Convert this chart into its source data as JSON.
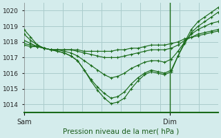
{
  "xlabel": "Pression niveau de la mer( hPa )",
  "bg_color": "#d4ecec",
  "grid_color": "#aacccc",
  "line_color": "#1a6b1a",
  "marker": "+",
  "xlim": [
    0,
    36
  ],
  "ylim": [
    1013.5,
    1020.5
  ],
  "yticks": [
    1014,
    1015,
    1016,
    1017,
    1018,
    1019,
    1020
  ],
  "sam_x": 0,
  "dim_x": 27,
  "series": [
    [
      1018.8,
      1018.3,
      1017.8,
      1017.6,
      1017.5,
      1017.4,
      1017.3,
      1017.1,
      1016.8,
      1016.2,
      1015.5,
      1014.9,
      1014.4,
      1014.05,
      1014.15,
      1014.4,
      1015.0,
      1015.5,
      1015.9,
      1016.1,
      1016.0,
      1015.9,
      1016.1,
      1017.1,
      1018.0,
      1018.8,
      1019.3,
      1019.6,
      1019.9,
      1020.2
    ],
    [
      1018.5,
      1018.1,
      1017.8,
      1017.6,
      1017.5,
      1017.4,
      1017.3,
      1017.1,
      1016.8,
      1016.2,
      1015.6,
      1015.1,
      1014.7,
      1014.4,
      1014.5,
      1014.8,
      1015.3,
      1015.7,
      1016.0,
      1016.2,
      1016.1,
      1016.0,
      1016.2,
      1017.1,
      1017.9,
      1018.6,
      1019.0,
      1019.3,
      1019.6,
      1019.9
    ],
    [
      1018.1,
      1017.9,
      1017.7,
      1017.6,
      1017.5,
      1017.5,
      1017.4,
      1017.3,
      1017.1,
      1016.8,
      1016.5,
      1016.2,
      1015.9,
      1015.7,
      1015.8,
      1016.0,
      1016.3,
      1016.5,
      1016.7,
      1016.8,
      1016.8,
      1016.7,
      1016.9,
      1017.4,
      1018.0,
      1018.5,
      1018.8,
      1019.0,
      1019.2,
      1019.3
    ],
    [
      1017.9,
      1017.8,
      1017.7,
      1017.6,
      1017.5,
      1017.5,
      1017.5,
      1017.5,
      1017.4,
      1017.3,
      1017.2,
      1017.1,
      1017.0,
      1017.0,
      1017.0,
      1017.1,
      1017.2,
      1017.3,
      1017.4,
      1017.5,
      1017.5,
      1017.5,
      1017.6,
      1017.8,
      1018.1,
      1018.3,
      1018.5,
      1018.6,
      1018.7,
      1018.8
    ],
    [
      1017.8,
      1017.7,
      1017.7,
      1017.6,
      1017.5,
      1017.5,
      1017.5,
      1017.5,
      1017.5,
      1017.4,
      1017.4,
      1017.4,
      1017.4,
      1017.4,
      1017.5,
      1017.5,
      1017.6,
      1017.6,
      1017.7,
      1017.8,
      1017.8,
      1017.8,
      1017.9,
      1018.0,
      1018.2,
      1018.3,
      1018.4,
      1018.5,
      1018.6,
      1018.7
    ]
  ]
}
